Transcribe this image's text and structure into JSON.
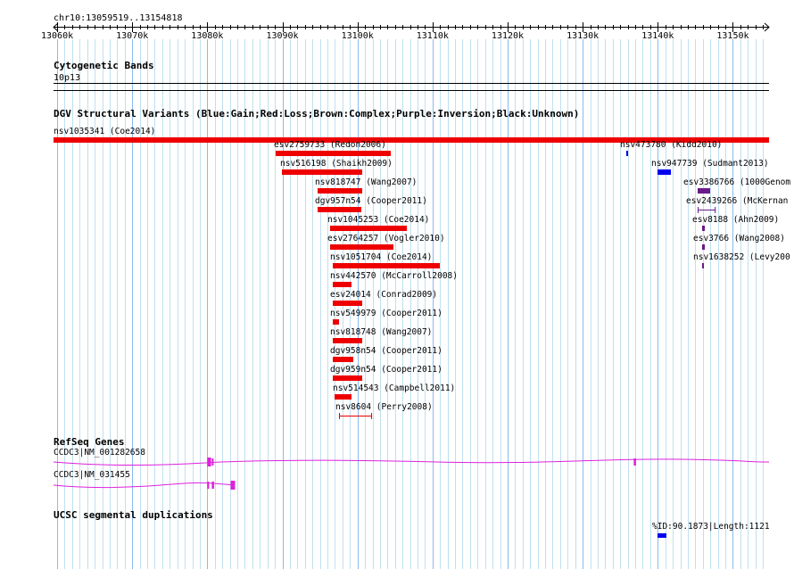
{
  "browser": {
    "location": "chr10:13059519..13154818",
    "ruler_ticks": [
      {
        "label": "13060k",
        "pos": 13060
      },
      {
        "label": "13070k",
        "pos": 13070
      },
      {
        "label": "13080k",
        "pos": 13080
      },
      {
        "label": "13090k",
        "pos": 13090
      },
      {
        "label": "13100k",
        "pos": 13100
      },
      {
        "label": "13110k",
        "pos": 13110
      },
      {
        "label": "13120k",
        "pos": 13120
      },
      {
        "label": "13130k",
        "pos": 13130
      },
      {
        "label": "13140k",
        "pos": 13140
      },
      {
        "label": "13150k",
        "pos": 13150
      }
    ]
  },
  "tracks": {
    "cytoband": {
      "title": "Cytogenetic Bands",
      "band": "10p13"
    },
    "dgv": {
      "title": "DGV Structural Variants (Blue:Gain;Red:Loss;Brown:Complex;Purple:Inversion;Black:Unknown)",
      "colors": {
        "loss": "#ee0000",
        "gain": "#0000ee",
        "inversion": "#6a1a8a"
      },
      "features": [
        {
          "label": "nsv1035341 (Coe2014)",
          "type": "loss",
          "start": 13059519,
          "end": 13154818,
          "style": "solid"
        },
        {
          "label": "esv2759733 (Redon2006)",
          "type": "loss",
          "start": 13089100,
          "end": 13104470,
          "style": "solid"
        },
        {
          "label": "nsv516198 (Shaikh2009)",
          "type": "loss",
          "start": 13089900,
          "end": 13100600,
          "style": "solid"
        },
        {
          "label": "nsv818747 (Wang2007)",
          "type": "loss",
          "start": 13094700,
          "end": 13100600,
          "style": "solid"
        },
        {
          "label": "dgv957n54 (Cooper2011)",
          "type": "loss",
          "start": 13094700,
          "end": 13100500,
          "style": "solid"
        },
        {
          "label": "nsv1045253 (Coe2014)",
          "type": "loss",
          "start": 13096400,
          "end": 13106600,
          "style": "solid"
        },
        {
          "label": "esv2764257 (Vogler2010)",
          "type": "loss",
          "start": 13096400,
          "end": 13104800,
          "style": "solid"
        },
        {
          "label": "nsv1051704 (Coe2014)",
          "type": "loss",
          "start": 13096700,
          "end": 13111000,
          "style": "solid"
        },
        {
          "label": "nsv442570 (McCarroll2008)",
          "type": "loss",
          "start": 13096700,
          "end": 13099200,
          "style": "solid"
        },
        {
          "label": "esv24014 (Conrad2009)",
          "type": "loss",
          "start": 13096700,
          "end": 13100600,
          "style": "solid"
        },
        {
          "label": "nsv549979 (Cooper2011)",
          "type": "loss",
          "start": 13096700,
          "end": 13097600,
          "style": "solid"
        },
        {
          "label": "nsv818748 (Wang2007)",
          "type": "loss",
          "start": 13096700,
          "end": 13100600,
          "style": "solid"
        },
        {
          "label": "dgv958n54 (Cooper2011)",
          "type": "loss",
          "start": 13096700,
          "end": 13099500,
          "style": "solid"
        },
        {
          "label": "dgv959n54 (Cooper2011)",
          "type": "loss",
          "start": 13096700,
          "end": 13100600,
          "style": "solid"
        },
        {
          "label": "nsv514543 (Campbell2011)",
          "type": "loss",
          "start": 13097000,
          "end": 13099200,
          "style": "solid"
        },
        {
          "label": "nsv8604 (Perry2008)",
          "type": "loss",
          "start": 13097500,
          "end": 13101900,
          "style": "thin"
        },
        {
          "label": "nsv473780 (Kidd2010)",
          "type": "gain",
          "start": 13135800,
          "end": 13136000,
          "style": "solid"
        },
        {
          "label": "nsv947739 (Sudmant2013)",
          "type": "gain",
          "start": 13140000,
          "end": 13141800,
          "style": "solid"
        },
        {
          "label": "esv3386766 (1000Genom",
          "type": "inversion",
          "start": 13145300,
          "end": 13147000,
          "style": "solid"
        },
        {
          "label": "esv2439266 (McKernan",
          "type": "inversion",
          "start": 13145300,
          "end": 13147700,
          "style": "thin"
        },
        {
          "label": "esv8188 (Ahn2009)",
          "type": "inversion",
          "start": 13145900,
          "end": 13146300,
          "style": "solid"
        },
        {
          "label": "esv3766 (Wang2008)",
          "type": "inversion",
          "start": 13145900,
          "end": 13146300,
          "style": "solid"
        },
        {
          "label": "nsv1638252 (Levy200",
          "type": "inversion",
          "start": 13145900,
          "end": 13146100,
          "style": "solid"
        }
      ]
    },
    "refseq": {
      "title": "RefSeq Genes",
      "color": "#dd22dd",
      "genes": [
        {
          "label": "CCDC3|NM_001282658",
          "start": 13059519,
          "end": 13154818,
          "exons": [
            [
              13080000,
              13080500
            ],
            [
              13080600,
              13080800
            ],
            [
              13136800,
              13137100
            ]
          ]
        },
        {
          "label": "CCDC3|NM_031455",
          "start": 13059519,
          "end": 13083700,
          "exons": [
            [
              13080000,
              13080200
            ],
            [
              13080600,
              13080900
            ],
            [
              13083100,
              13083700
            ]
          ]
        }
      ]
    },
    "segdup": {
      "title": "UCSC segmental duplications",
      "color": "#0000ee",
      "features": [
        {
          "label": "%ID:90.1873|Length:1121",
          "start": 13140000,
          "end": 13141200
        }
      ]
    }
  }
}
